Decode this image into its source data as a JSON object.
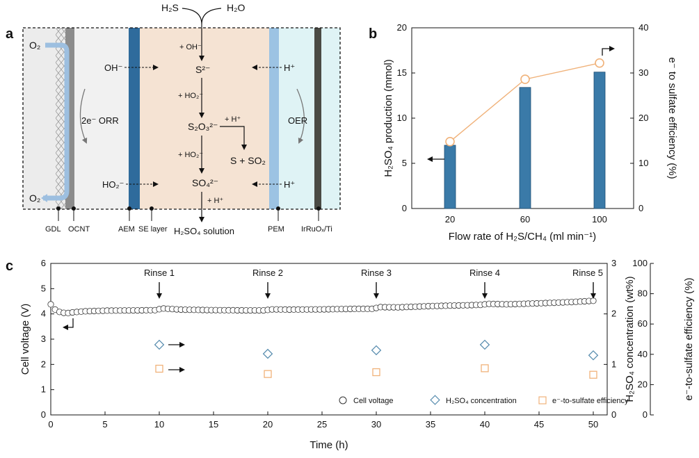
{
  "colors": {
    "bar": "#3a7aa8",
    "efficiency": "#f0b27a",
    "concentration": "#5b8fb0",
    "voltage_marker": "#333333"
  },
  "panels": {
    "a": {
      "label": "a",
      "inputs": [
        "H₂S",
        "H₂O"
      ],
      "o2_top": "O₂",
      "o2_bottom": "O₂",
      "left_reaction": "2e⁻ ORR",
      "right_reaction": "OER",
      "oh_ion": "OH⁻",
      "ho2_ion": "HO₂⁻",
      "h_ion_top": "H⁺",
      "h_ion_bottom": "H⁺",
      "species": [
        "S²⁻",
        "S₂O₃²⁻",
        "SO₄²⁻"
      ],
      "side_product": "S + SO₂",
      "reagents": {
        "oh": "+ OH⁻",
        "ho2_1": "+ HO₂⁻",
        "ho2_2": "+ HO₂⁻",
        "h_plus_side": "+ H⁺",
        "h_plus_bottom": "+ H⁺"
      },
      "product": "H₂SO₄ solution",
      "components": [
        "GDL",
        "OCNT",
        "AEM",
        "SE layer",
        "PEM",
        "IrRuOₓ/Ti"
      ]
    },
    "c_legend": [
      "Cell voltage",
      "H₂SO₄ concentration",
      "e⁻-to-sulfate efficiency"
    ]
  },
  "chart_data": [
    {
      "panel": "b",
      "type": "bar",
      "title": "",
      "xlabel": "Flow rate of H₂S/CH₄ (ml min⁻¹)",
      "ylabel": "H₂SO₄ production (mmol)",
      "y2label": "e⁻ to sulfate efficiency (%)",
      "categories": [
        "20",
        "60",
        "100"
      ],
      "ylim": [
        0,
        20
      ],
      "y2lim": [
        0,
        40
      ],
      "yticks": [
        0,
        5,
        10,
        15,
        20
      ],
      "y2ticks": [
        0,
        10,
        20,
        30,
        40
      ],
      "series": [
        {
          "name": "H₂SO₄ production",
          "axis": "left",
          "type": "bar",
          "values": [
            7.0,
            13.4,
            15.1
          ]
        },
        {
          "name": "e⁻ to sulfate efficiency",
          "axis": "right",
          "type": "line",
          "values": [
            14.8,
            28.6,
            32.2
          ]
        }
      ]
    },
    {
      "panel": "c",
      "type": "scatter",
      "xlabel": "Time (h)",
      "ylabel": "Cell voltage (V)",
      "y2label": "H₂SO₄ concentration (wt%)",
      "y3label": "e⁻-to-sulfate efficiency (%)",
      "xlim": [
        0,
        50
      ],
      "ylim": [
        0,
        6
      ],
      "y2lim": [
        0,
        3
      ],
      "y3lim": [
        0,
        100
      ],
      "xticks": [
        0,
        5,
        10,
        15,
        20,
        25,
        30,
        35,
        40,
        45,
        50
      ],
      "yticks": [
        0,
        1,
        2,
        3,
        4,
        5,
        6
      ],
      "y2ticks": [
        0,
        1,
        2,
        3
      ],
      "y3ticks": [
        0,
        20,
        40,
        60,
        80,
        100
      ],
      "annotations": [
        {
          "text": "Rinse 1",
          "x": 10
        },
        {
          "text": "Rinse 2",
          "x": 20
        },
        {
          "text": "Rinse 3",
          "x": 30
        },
        {
          "text": "Rinse 4",
          "x": 40
        },
        {
          "text": "Rinse 5",
          "x": 50
        }
      ],
      "series": [
        {
          "name": "Cell voltage",
          "axis": "left",
          "x": [
            0,
            0.5,
            1,
            1.5,
            2,
            3,
            5,
            8,
            9.8,
            10.2,
            12,
            15,
            18,
            19.8,
            20.2,
            22,
            25,
            28,
            29.8,
            30.2,
            32,
            35,
            38,
            39.8,
            40.2,
            42,
            45,
            48,
            50
          ],
          "y": [
            4.38,
            4.12,
            4.05,
            4.03,
            4.06,
            4.1,
            4.13,
            4.14,
            4.15,
            4.22,
            4.17,
            4.15,
            4.14,
            4.14,
            4.18,
            4.17,
            4.18,
            4.2,
            4.2,
            4.27,
            4.26,
            4.31,
            4.34,
            4.36,
            4.4,
            4.38,
            4.42,
            4.47,
            4.52
          ]
        },
        {
          "name": "H₂SO₄ concentration",
          "axis": "right",
          "x": [
            10,
            20,
            30,
            40,
            50
          ],
          "y": [
            1.39,
            1.21,
            1.28,
            1.39,
            1.18
          ]
        },
        {
          "name": "e⁻-to-sulfate efficiency",
          "axis": "right2",
          "x": [
            10,
            20,
            30,
            40,
            50
          ],
          "y": [
            30.5,
            27.0,
            28.2,
            30.8,
            26.5
          ]
        }
      ]
    }
  ]
}
